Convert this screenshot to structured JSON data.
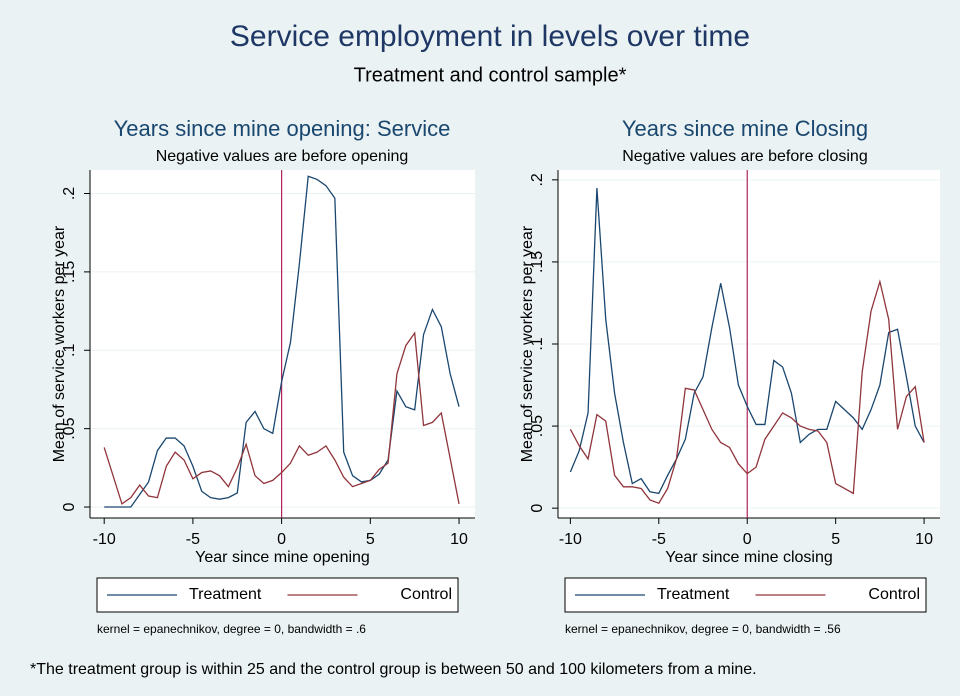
{
  "title": "Service employment in levels over time",
  "subtitle": "Treatment and control sample*",
  "footnote": "*The treatment group is within 25 and the control group is between 50 and 100 kilometers from a mine.",
  "chart_data": [
    {
      "type": "line",
      "title": "Years since mine opening: Service",
      "subtitle": "Negative values are before opening",
      "xlabel": "Year since mine opening",
      "ylabel": "Mean of service workers per year",
      "note": "kernel = epanechnikov, degree = 0, bandwidth = .6",
      "x": [
        -10,
        -9.5,
        -9,
        -8.5,
        -8,
        -7.5,
        -7,
        -6.5,
        -6,
        -5.5,
        -5,
        -4.5,
        -4,
        -3.5,
        -3,
        -2.5,
        -2,
        -1.5,
        -1,
        -0.5,
        0,
        0.5,
        1,
        1.5,
        2,
        2.5,
        3,
        3.5,
        4,
        4.5,
        5,
        5.5,
        6,
        6.5,
        7,
        7.5,
        8,
        8.5,
        9,
        9.5,
        10
      ],
      "series": [
        {
          "name": "Treatment",
          "color": "#1a476f",
          "values": [
            0,
            0,
            0,
            0,
            0.008,
            0.016,
            0.036,
            0.044,
            0.044,
            0.039,
            0.026,
            0.01,
            0.006,
            0.005,
            0.006,
            0.009,
            0.054,
            0.061,
            0.05,
            0.047,
            0.08,
            0.105,
            0.155,
            0.211,
            0.209,
            0.205,
            0.197,
            0.035,
            0.02,
            0.016,
            0.017,
            0.021,
            0.03,
            0.074,
            0.064,
            0.062,
            0.11,
            0.126,
            0.115,
            0.085,
            0.064
          ]
        },
        {
          "name": "Control",
          "color": "#90353b",
          "values": [
            0.038,
            0.02,
            0.002,
            0.006,
            0.014,
            0.007,
            0.006,
            0.026,
            0.035,
            0.03,
            0.018,
            0.022,
            0.023,
            0.02,
            0.013,
            0.025,
            0.04,
            0.02,
            0.015,
            0.017,
            0.022,
            0.028,
            0.039,
            0.033,
            0.035,
            0.039,
            0.03,
            0.019,
            0.013,
            0.015,
            0.017,
            0.024,
            0.028,
            0.085,
            0.103,
            0.111,
            0.052,
            0.054,
            0.06,
            0.031,
            0.002
          ]
        }
      ],
      "vline": 0,
      "vline_color": "#b0245a",
      "xlim": [
        -10.8,
        10.9
      ],
      "ylim": [
        -0.007,
        0.215
      ],
      "xticks": [
        -10,
        -5,
        0,
        5,
        10
      ],
      "yticks": [
        0,
        {
          "value": 0.05,
          "label": ".05"
        },
        {
          "value": 0.1,
          "label": ".1"
        },
        {
          "value": 0.15,
          "label": ".15"
        },
        {
          "value": 0.2,
          "label": ".2"
        }
      ],
      "grid": true,
      "legend": "bottom"
    },
    {
      "type": "line",
      "title": "Years since mine Closing",
      "subtitle": "Negative values are before closing",
      "xlabel": "Year since mine closing",
      "ylabel": "Mean of service workers per year",
      "note": "kernel = epanechnikov, degree = 0, bandwidth = .56",
      "x": [
        -10,
        -9.5,
        -9,
        -8.5,
        -8,
        -7.5,
        -7,
        -6.5,
        -6,
        -5.5,
        -5,
        -4.5,
        -4,
        -3.5,
        -3,
        -2.5,
        -2,
        -1.5,
        -1,
        -0.5,
        0,
        0.5,
        1,
        1.5,
        2,
        2.5,
        3,
        3.5,
        4,
        4.5,
        5,
        5.5,
        6,
        6.5,
        7,
        7.5,
        8,
        8.5,
        9,
        9.5,
        10
      ],
      "series": [
        {
          "name": "Treatment",
          "color": "#1a476f",
          "values": [
            0.022,
            0.035,
            0.058,
            0.195,
            0.115,
            0.07,
            0.04,
            0.015,
            0.018,
            0.01,
            0.009,
            0.02,
            0.03,
            0.042,
            0.07,
            0.08,
            0.11,
            0.137,
            0.11,
            0.075,
            0.062,
            0.051,
            0.051,
            0.09,
            0.086,
            0.07,
            0.04,
            0.045,
            0.048,
            0.048,
            0.065,
            0.06,
            0.055,
            0.048,
            0.06,
            0.075,
            0.107,
            0.109,
            0.08,
            0.05,
            0.04
          ]
        },
        {
          "name": "Control",
          "color": "#90353b",
          "values": [
            0.048,
            0.038,
            0.03,
            0.057,
            0.053,
            0.02,
            0.013,
            0.013,
            0.012,
            0.005,
            0.003,
            0.012,
            0.03,
            0.073,
            0.072,
            0.06,
            0.048,
            0.04,
            0.037,
            0.027,
            0.021,
            0.025,
            0.042,
            0.05,
            0.058,
            0.055,
            0.05,
            0.048,
            0.047,
            0.04,
            0.015,
            0.012,
            0.009,
            0.083,
            0.12,
            0.138,
            0.115,
            0.048,
            0.068,
            0.074,
            0.04
          ]
        }
      ],
      "vline": 0,
      "vline_color": "#b0245a",
      "xlim": [
        -10.7,
        10.9
      ],
      "ylim": [
        -0.006,
        0.206
      ],
      "xticks": [
        -10,
        -5,
        0,
        5,
        10
      ],
      "yticks": [
        0,
        {
          "value": 0.05,
          "label": ".05"
        },
        {
          "value": 0.1,
          "label": ".1"
        },
        {
          "value": 0.15,
          "label": ".15"
        },
        {
          "value": 0.2,
          "label": ".2"
        }
      ],
      "grid": true,
      "legend": "bottom"
    }
  ]
}
